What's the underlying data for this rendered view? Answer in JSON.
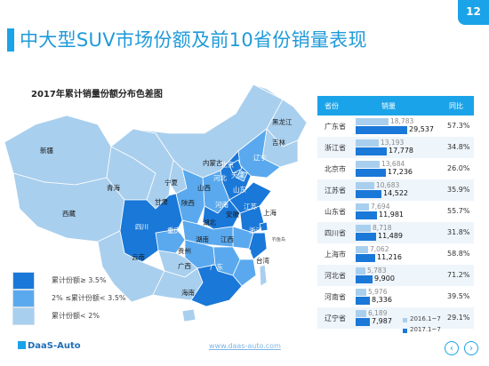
{
  "slide": {
    "title": "中大型SUV市场份额及前10省份销量表现",
    "page_number": "12",
    "accent_color": "#1aa3e8"
  },
  "map": {
    "title": "2017年累计销量份额分布色差图",
    "provinces": [
      "黑龙江",
      "吉林",
      "辽宁",
      "内蒙古",
      "北京",
      "天津",
      "河北",
      "山西",
      "宁夏",
      "新疆",
      "青海",
      "甘肃",
      "西藏",
      "陕西",
      "山东",
      "河南",
      "江苏",
      "安徽",
      "上海",
      "湖北",
      "四川",
      "重庆",
      "浙江",
      "湖南",
      "江西",
      "贵州",
      "福建",
      "云南",
      "广西",
      "广东",
      "台湾",
      "海南"
    ],
    "note": "钓鱼岛",
    "legend": [
      {
        "label": "累计份额≥ 3.5%",
        "color": "#1a78d8"
      },
      {
        "label": "2% ≤累计份额< 3.5%",
        "color": "#5aa9ee"
      },
      {
        "label": "累计份额< 2%",
        "color": "#a9cfee"
      }
    ]
  },
  "table": {
    "headers": [
      "省份",
      "销量",
      "同比"
    ],
    "rows": [
      {
        "province": "广东省",
        "v2016": "18,783",
        "v2017": "29,537",
        "yoy": "57.3%"
      },
      {
        "province": "浙江省",
        "v2016": "13,193",
        "v2017": "17,778",
        "yoy": "34.8%"
      },
      {
        "province": "北京市",
        "v2016": "13,684",
        "v2017": "17,236",
        "yoy": "26.0%"
      },
      {
        "province": "江苏省",
        "v2016": "10,683",
        "v2017": "14,522",
        "yoy": "35.9%"
      },
      {
        "province": "山东省",
        "v2016": "7,694",
        "v2017": "11,981",
        "yoy": "55.7%"
      },
      {
        "province": "四川省",
        "v2016": "8,718",
        "v2017": "11,489",
        "yoy": "31.8%"
      },
      {
        "province": "上海市",
        "v2016": "7,062",
        "v2017": "11,216",
        "yoy": "58.8%"
      },
      {
        "province": "河北省",
        "v2016": "5,783",
        "v2017": "9,900",
        "yoy": "71.2%"
      },
      {
        "province": "河南省",
        "v2016": "5,976",
        "v2017": "8,336",
        "yoy": "39.5%"
      },
      {
        "province": "辽宁省",
        "v2016": "6,189",
        "v2017": "7,987",
        "yoy": "29.1%"
      }
    ],
    "legend_2016": "2016.1~7",
    "legend_2017": "2017.1~7",
    "color_2016": "#a9cfee",
    "color_2017": "#1a78d8"
  },
  "footer": {
    "logo": "DaaS-Auto",
    "url": "www.daas-auto.com",
    "prev_icon": "chevron-left-icon",
    "next_icon": "chevron-right-icon"
  }
}
